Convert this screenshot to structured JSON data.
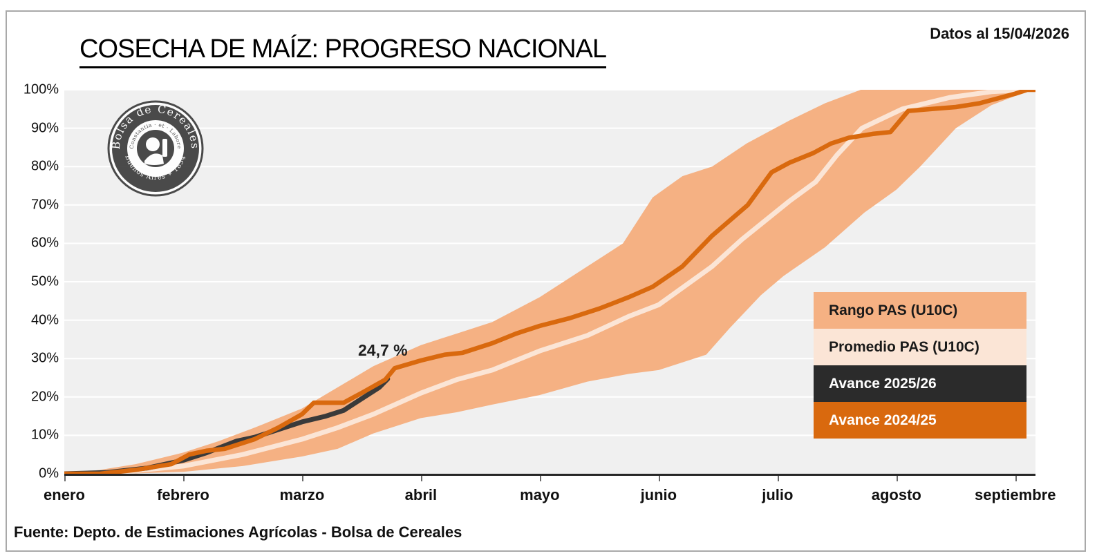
{
  "header": {
    "title": "COSECHA DE MAÍZ: PROGRESO NACIONAL",
    "date_label": "Datos al 15/04/2026"
  },
  "footer": {
    "source": "Fuente: Depto. de Estimaciones Agrícolas - Bolsa de Cereales"
  },
  "logo": {
    "top_text": "Bolsa de Cereales",
    "middle_text": "Constantia · et · Labore",
    "bottom_text": "Buenos Aires ∗ 1854"
  },
  "annotation": {
    "text": "24,7 %"
  },
  "legend": {
    "items": [
      {
        "label": "Rango PAS (U10C)",
        "bg": "#F5B183",
        "fg": "#1a1a1a"
      },
      {
        "label": "Promedio PAS (U10C)",
        "bg": "#FBE5D6",
        "fg": "#1a1a1a"
      },
      {
        "label": "Avance 2025/26",
        "bg": "#2B2B2B",
        "fg": "#ffffff"
      },
      {
        "label": "Avance 2024/25",
        "bg": "#D9690E",
        "fg": "#ffffff"
      }
    ]
  },
  "chart_data": {
    "type": "line",
    "title": "COSECHA DE MAÍZ: PROGRESO NACIONAL",
    "xlabel": "",
    "ylabel": "",
    "x_unit": "months (0 = enero tick ... 8 = septiembre tick)",
    "x_range": [
      0,
      8.17
    ],
    "ylim": [
      0,
      100
    ],
    "grid": "horizontal-white",
    "legend_position": "inside-right",
    "x_tick_labels": [
      "enero",
      "febrero",
      "marzo",
      "abril",
      "mayo",
      "junio",
      "julio",
      "agosto",
      "septiembre"
    ],
    "y_tick_labels": [
      "100%",
      "90%",
      "80%",
      "70%",
      "60%",
      "50%",
      "40%",
      "30%",
      "20%",
      "10%",
      "0%"
    ],
    "colors": {
      "band": "#F5B183",
      "promedio": "#FBE5D6",
      "avance_2025_26": "#3A3A3A",
      "avance_2024_25": "#D9690E",
      "plot_bg": "#F0F0F0",
      "gridline": "#FFFFFF",
      "axis": "#262626"
    },
    "band": {
      "name": "Rango PAS (U10C)",
      "upper": [
        [
          0,
          0
        ],
        [
          0.3,
          1
        ],
        [
          0.6,
          2.5
        ],
        [
          1,
          5.5
        ],
        [
          1.3,
          8.5
        ],
        [
          1.6,
          12
        ],
        [
          2,
          17
        ],
        [
          2.3,
          22.5
        ],
        [
          2.6,
          28
        ],
        [
          3,
          33.5
        ],
        [
          3.3,
          36.5
        ],
        [
          3.6,
          39.5
        ],
        [
          4,
          46
        ],
        [
          4.2,
          50
        ],
        [
          4.4,
          54
        ],
        [
          4.7,
          60
        ],
        [
          4.95,
          72
        ],
        [
          5.2,
          77.5
        ],
        [
          5.45,
          80
        ],
        [
          5.74,
          86
        ],
        [
          6.1,
          92
        ],
        [
          6.4,
          96.5
        ],
        [
          6.7,
          100
        ],
        [
          8.17,
          100
        ]
      ],
      "lower": [
        [
          0,
          0
        ],
        [
          0.5,
          0
        ],
        [
          1,
          0.5
        ],
        [
          1.5,
          2
        ],
        [
          2,
          4.5
        ],
        [
          2.3,
          6.5
        ],
        [
          2.6,
          10.5
        ],
        [
          3,
          14.5
        ],
        [
          3.3,
          16
        ],
        [
          3.6,
          18
        ],
        [
          4,
          20.5
        ],
        [
          4.4,
          24
        ],
        [
          4.75,
          26
        ],
        [
          5,
          27
        ],
        [
          5.4,
          31
        ],
        [
          5.6,
          38
        ],
        [
          5.86,
          46.5
        ],
        [
          6.05,
          51.5
        ],
        [
          6.4,
          59
        ],
        [
          6.73,
          68
        ],
        [
          7,
          74
        ],
        [
          7.2,
          80
        ],
        [
          7.5,
          90
        ],
        [
          7.8,
          96
        ],
        [
          8.05,
          99
        ],
        [
          8.17,
          100
        ]
      ]
    },
    "series": [
      {
        "name": "Promedio PAS (U10C)",
        "color_key": "promedio",
        "width": 7,
        "points": [
          [
            0,
            0
          ],
          [
            0.5,
            0.5
          ],
          [
            1,
            2
          ],
          [
            1.5,
            5
          ],
          [
            2,
            9
          ],
          [
            2.3,
            12
          ],
          [
            2.6,
            15.5
          ],
          [
            3,
            21
          ],
          [
            3.3,
            24.5
          ],
          [
            3.6,
            27
          ],
          [
            4,
            32
          ],
          [
            4.4,
            36
          ],
          [
            4.75,
            41
          ],
          [
            5,
            44
          ],
          [
            5.45,
            54
          ],
          [
            5.7,
            61
          ],
          [
            5.9,
            66
          ],
          [
            6.1,
            71
          ],
          [
            6.32,
            76
          ],
          [
            6.5,
            83
          ],
          [
            6.71,
            90
          ],
          [
            7.05,
            95
          ],
          [
            7.45,
            98
          ],
          [
            7.8,
            99.5
          ],
          [
            8.1,
            100
          ],
          [
            8.17,
            100
          ]
        ]
      },
      {
        "name": "Avance 2025/26",
        "color_key": "avance_2025_26",
        "width": 7,
        "points": [
          [
            0,
            0
          ],
          [
            0.35,
            0.3
          ],
          [
            0.7,
            1.5
          ],
          [
            1,
            3.5
          ],
          [
            1.2,
            5.5
          ],
          [
            1.45,
            8.5
          ],
          [
            1.6,
            9.5
          ],
          [
            1.8,
            11.5
          ],
          [
            2,
            13.5
          ],
          [
            2.2,
            15
          ],
          [
            2.35,
            16.5
          ],
          [
            2.5,
            19.5
          ],
          [
            2.65,
            22.5
          ],
          [
            2.72,
            24.7
          ]
        ],
        "last_value_label": "24,7 %"
      },
      {
        "name": "Avance 2024/25",
        "color_key": "avance_2024_25",
        "width": 6.5,
        "points": [
          [
            0,
            0
          ],
          [
            0.3,
            0
          ],
          [
            0.6,
            1
          ],
          [
            0.9,
            2.5
          ],
          [
            1.05,
            5
          ],
          [
            1.2,
            6
          ],
          [
            1.35,
            6.5
          ],
          [
            1.6,
            9
          ],
          [
            1.8,
            12
          ],
          [
            2,
            15.5
          ],
          [
            2.1,
            18.5
          ],
          [
            2.35,
            18.5
          ],
          [
            2.5,
            21
          ],
          [
            2.7,
            24.5
          ],
          [
            2.78,
            27.5
          ],
          [
            3,
            29.5
          ],
          [
            3.2,
            31
          ],
          [
            3.35,
            31.5
          ],
          [
            3.6,
            34
          ],
          [
            3.8,
            36.5
          ],
          [
            4,
            38.5
          ],
          [
            4.25,
            40.5
          ],
          [
            4.5,
            43
          ],
          [
            4.75,
            46
          ],
          [
            4.95,
            48.7
          ],
          [
            5.2,
            54
          ],
          [
            5.45,
            62
          ],
          [
            5.75,
            70
          ],
          [
            5.95,
            78.5
          ],
          [
            6.1,
            81
          ],
          [
            6.3,
            83.5
          ],
          [
            6.45,
            86
          ],
          [
            6.6,
            87.5
          ],
          [
            6.8,
            88.5
          ],
          [
            6.95,
            89
          ],
          [
            7.1,
            94.5
          ],
          [
            7.3,
            95
          ],
          [
            7.5,
            95.5
          ],
          [
            7.7,
            96.5
          ],
          [
            8,
            99
          ],
          [
            8.1,
            100
          ],
          [
            8.17,
            100
          ]
        ]
      }
    ]
  }
}
